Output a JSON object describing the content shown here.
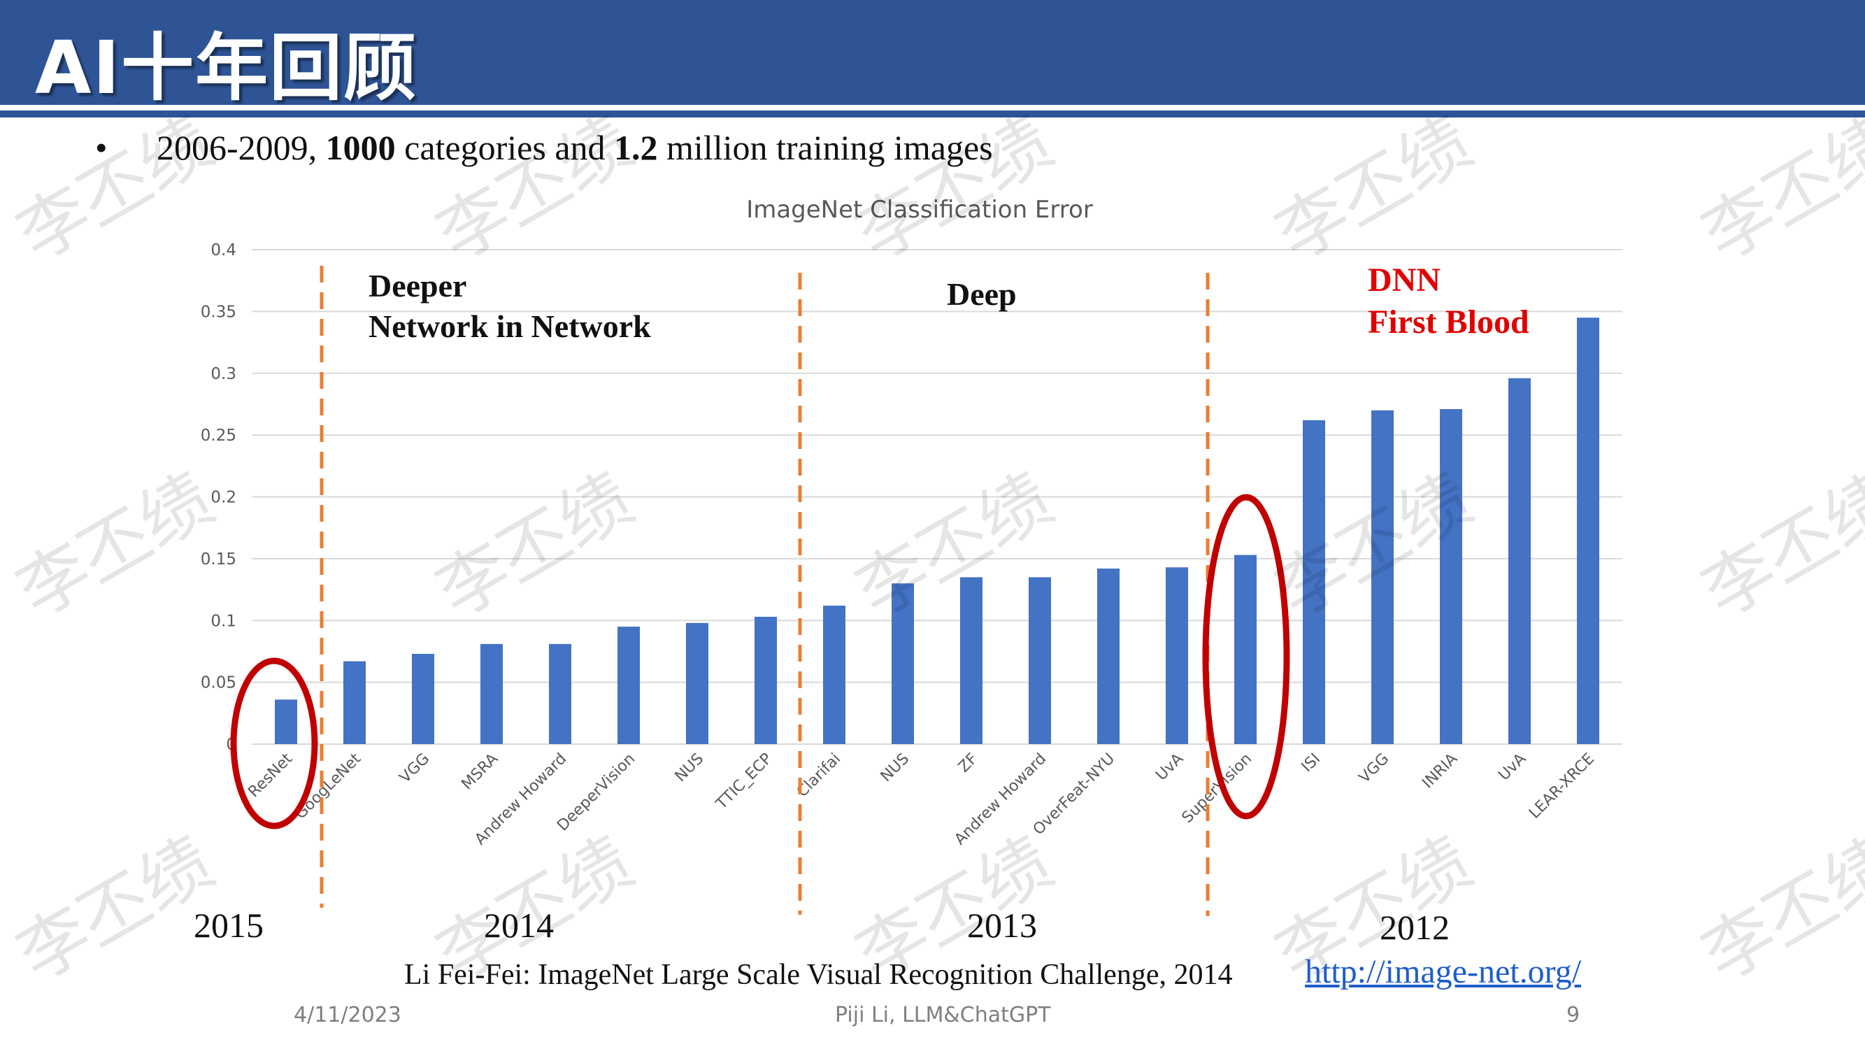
{
  "slide": {
    "title": "AI十年回顾",
    "bullet": "•",
    "bullet_parts": [
      "2006-2009, ",
      "1000",
      " categories and ",
      "1.2",
      " million training images"
    ],
    "caption": "Li Fei-Fei: ImageNet Large Scale Visual Recognition Challenge, 2014",
    "link": "http://image-net.org/",
    "footer_date": "4/11/2023",
    "footer_center": "Piji Li, LLM&ChatGPT",
    "page_number": "9",
    "watermark": "李丕绩"
  },
  "colors": {
    "header": "#2e5496",
    "bar": "#4472c4",
    "divider": "#ed7d31",
    "circle": "#c00000",
    "annotation_red": "#e00000",
    "link": "#1f5dc9"
  },
  "chart_data": {
    "type": "bar",
    "title": "ImageNet Classification Error",
    "xlabel": "",
    "ylabel": "",
    "ylim": [
      0,
      0.4
    ],
    "yticks": [
      "0",
      "0.05",
      "0.1",
      "0.15",
      "0.2",
      "0.25",
      "0.3",
      "0.35",
      "0.4"
    ],
    "grid": true,
    "categories": [
      "ResNet",
      "GoogLeNet",
      "VGG",
      "MSRA",
      "Andrew Howard",
      "DeeperVision",
      "NUS",
      "TTIC_ECP",
      "Clarifai",
      "NUS",
      "ZF",
      "Andrew Howard",
      "OverFeat-NYU",
      "UvA",
      "SuperVision",
      "ISI",
      "VGG",
      "INRIA",
      "UvA",
      "LEAR-XRCE"
    ],
    "values": [
      0.036,
      0.067,
      0.073,
      0.081,
      0.081,
      0.095,
      0.098,
      0.103,
      0.112,
      0.13,
      0.135,
      0.135,
      0.142,
      0.143,
      0.153,
      0.262,
      0.27,
      0.271,
      0.296,
      0.345
    ],
    "year_groups": [
      {
        "label": "2015",
        "annotation": []
      },
      {
        "label": "2014",
        "annotation": [
          "Deeper",
          "Network in Network"
        ]
      },
      {
        "label": "2013",
        "annotation": [
          "Deep"
        ]
      },
      {
        "label": "2012",
        "annotation": [
          "DNN",
          "First Blood"
        ]
      }
    ],
    "highlighted_bars": [
      "ResNet",
      "SuperVision"
    ]
  }
}
